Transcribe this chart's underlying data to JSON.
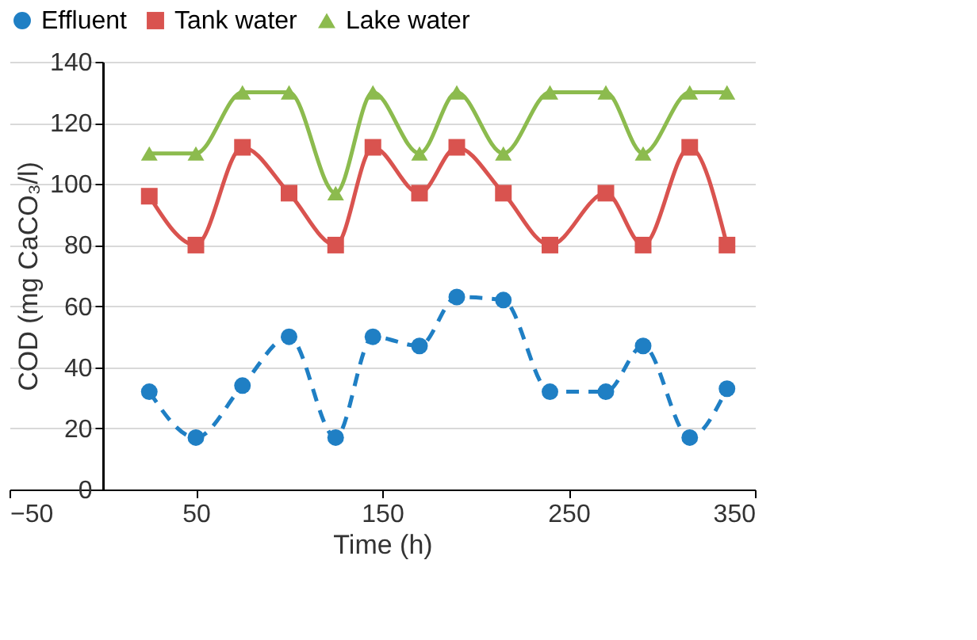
{
  "chart_data": {
    "type": "line",
    "xlabel": "Time (h)",
    "ylabel": "COD (mg CaCO₃/l)",
    "x": [
      25,
      50,
      75,
      100,
      125,
      145,
      170,
      190,
      215,
      240,
      270,
      290,
      315,
      335
    ],
    "series": [
      {
        "name": "Effluent",
        "color": "#1f7fc4",
        "marker": "circle",
        "line_style": "dashed",
        "values": [
          32,
          17,
          34,
          50,
          17,
          50,
          47,
          63,
          62,
          32,
          32,
          47,
          17,
          33
        ]
      },
      {
        "name": "Tank water",
        "color": "#d9534f",
        "marker": "square",
        "line_style": "solid",
        "values": [
          96,
          80,
          112,
          97,
          80,
          112,
          97,
          112,
          97,
          80,
          97,
          80,
          112,
          80
        ]
      },
      {
        "name": "Lake water",
        "color": "#8cbb4e",
        "marker": "triangle",
        "line_style": "solid",
        "values": [
          110,
          110,
          130,
          130,
          97,
          130,
          110,
          130,
          110,
          130,
          130,
          110,
          130,
          130
        ]
      }
    ],
    "xlim": [
      -50,
      350
    ],
    "xticks": [
      -50,
      50,
      150,
      250,
      350
    ],
    "ylim": [
      0,
      140
    ],
    "yticks": [
      0,
      20,
      40,
      60,
      80,
      100,
      120,
      140
    ],
    "grid": "y",
    "legend": "top"
  }
}
